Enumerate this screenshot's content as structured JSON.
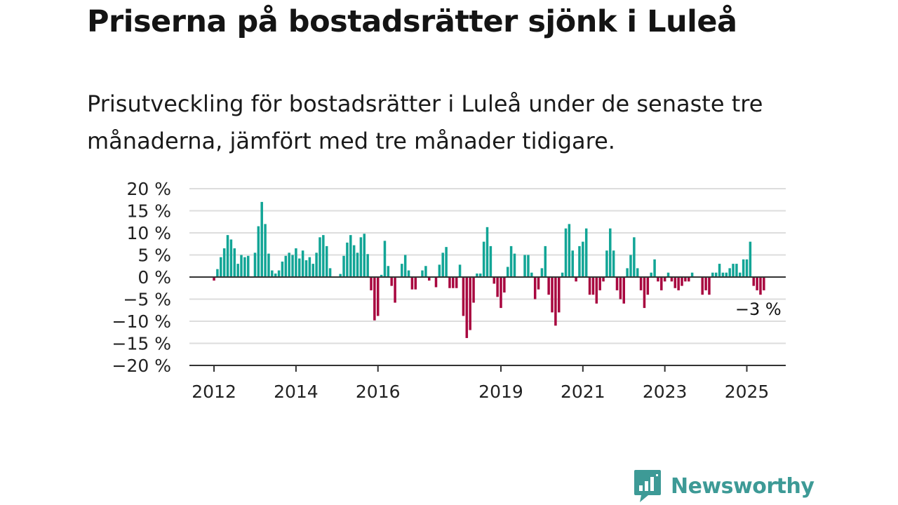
{
  "title": "Priserna på bostadsrätter sjönk i Luleå",
  "subtitle": "Prisutveckling för bostadsrätter i Luleå under de senaste tre månaderna, jämfört med tre månader tidigare.",
  "brand": "Newsworthy",
  "colors": {
    "positive": "#12a596",
    "negative": "#a8063f",
    "grid": "#dddddd",
    "axis": "#333333",
    "brand": "#3d9a96"
  },
  "chart_data": {
    "type": "bar",
    "title": "Priserna på bostadsrätter sjönk i Luleå",
    "xlabel": "",
    "ylabel": "",
    "ylim": [
      -20,
      20
    ],
    "yticks": [
      20,
      15,
      10,
      5,
      0,
      -5,
      -10,
      -15,
      -20
    ],
    "ytick_labels": [
      "20 %",
      "15 %",
      "10 %",
      "5 %",
      "0 %",
      "−5 %",
      "−10 %",
      "−15 %",
      "−20 %"
    ],
    "xlim": [
      2011.4,
      2025.95
    ],
    "xticks": [
      2012,
      2014,
      2016,
      2019,
      2021,
      2023,
      2025
    ],
    "xtick_labels": [
      "2012",
      "2014",
      "2016",
      "2019",
      "2021",
      "2023",
      "2025"
    ],
    "grid": true,
    "last_label": "−3 %",
    "start": "2012-01",
    "frequency": "monthly",
    "values": [
      -0.8,
      1.8,
      4.5,
      6.5,
      9.5,
      8.5,
      6.5,
      3.0,
      5.0,
      4.5,
      4.8,
      0.0,
      5.5,
      11.5,
      17.0,
      12.0,
      5.3,
      1.5,
      0.8,
      1.5,
      3.5,
      4.8,
      5.5,
      5.0,
      6.5,
      4.2,
      6.0,
      3.8,
      4.5,
      3.0,
      5.5,
      9.0,
      9.5,
      7.0,
      2.0,
      0.0,
      0.0,
      0.7,
      4.8,
      7.8,
      9.5,
      7.2,
      5.5,
      9.0,
      9.8,
      5.2,
      -3.0,
      -9.8,
      -8.8,
      0.5,
      8.2,
      2.5,
      -2.0,
      -5.8,
      0.0,
      3.0,
      5.0,
      1.5,
      -2.8,
      -2.8,
      0.0,
      1.5,
      2.5,
      -0.8,
      0.0,
      -2.3,
      2.8,
      5.5,
      6.8,
      -2.5,
      -2.5,
      -2.5,
      2.8,
      -8.8,
      -13.8,
      -12.0,
      -5.8,
      0.8,
      0.8,
      8.0,
      11.3,
      7.0,
      -1.5,
      -4.5,
      -7.0,
      -3.5,
      2.3,
      7.0,
      5.3,
      0.0,
      0.0,
      5.0,
      5.0,
      1.0,
      -5.0,
      -2.8,
      2.0,
      7.0,
      -4.0,
      -8.0,
      -11.0,
      -8.0,
      1.0,
      11.0,
      12.0,
      6.0,
      -1.0,
      7.0,
      8.0,
      11.0,
      -4.0,
      -4.0,
      -6.0,
      -3.0,
      -1.0,
      6.0,
      11.0,
      6.0,
      -3.0,
      -5.0,
      -6.0,
      2.0,
      5.0,
      9.0,
      2.0,
      -3.0,
      -7.0,
      -4.0,
      1.0,
      4.0,
      -1.0,
      -3.0,
      -1.0,
      1.0,
      -1.0,
      -2.5,
      -3.0,
      -2.0,
      -1.0,
      -1.0,
      1.0,
      0.0,
      0.0,
      -4.0,
      -3.0,
      -4.0,
      1.0,
      1.0,
      3.0,
      1.0,
      1.0,
      2.0,
      3.0,
      3.0,
      1.0,
      4.0,
      4.0,
      8.0,
      -2.0,
      -3.0,
      -4.0,
      -3.0
    ]
  }
}
